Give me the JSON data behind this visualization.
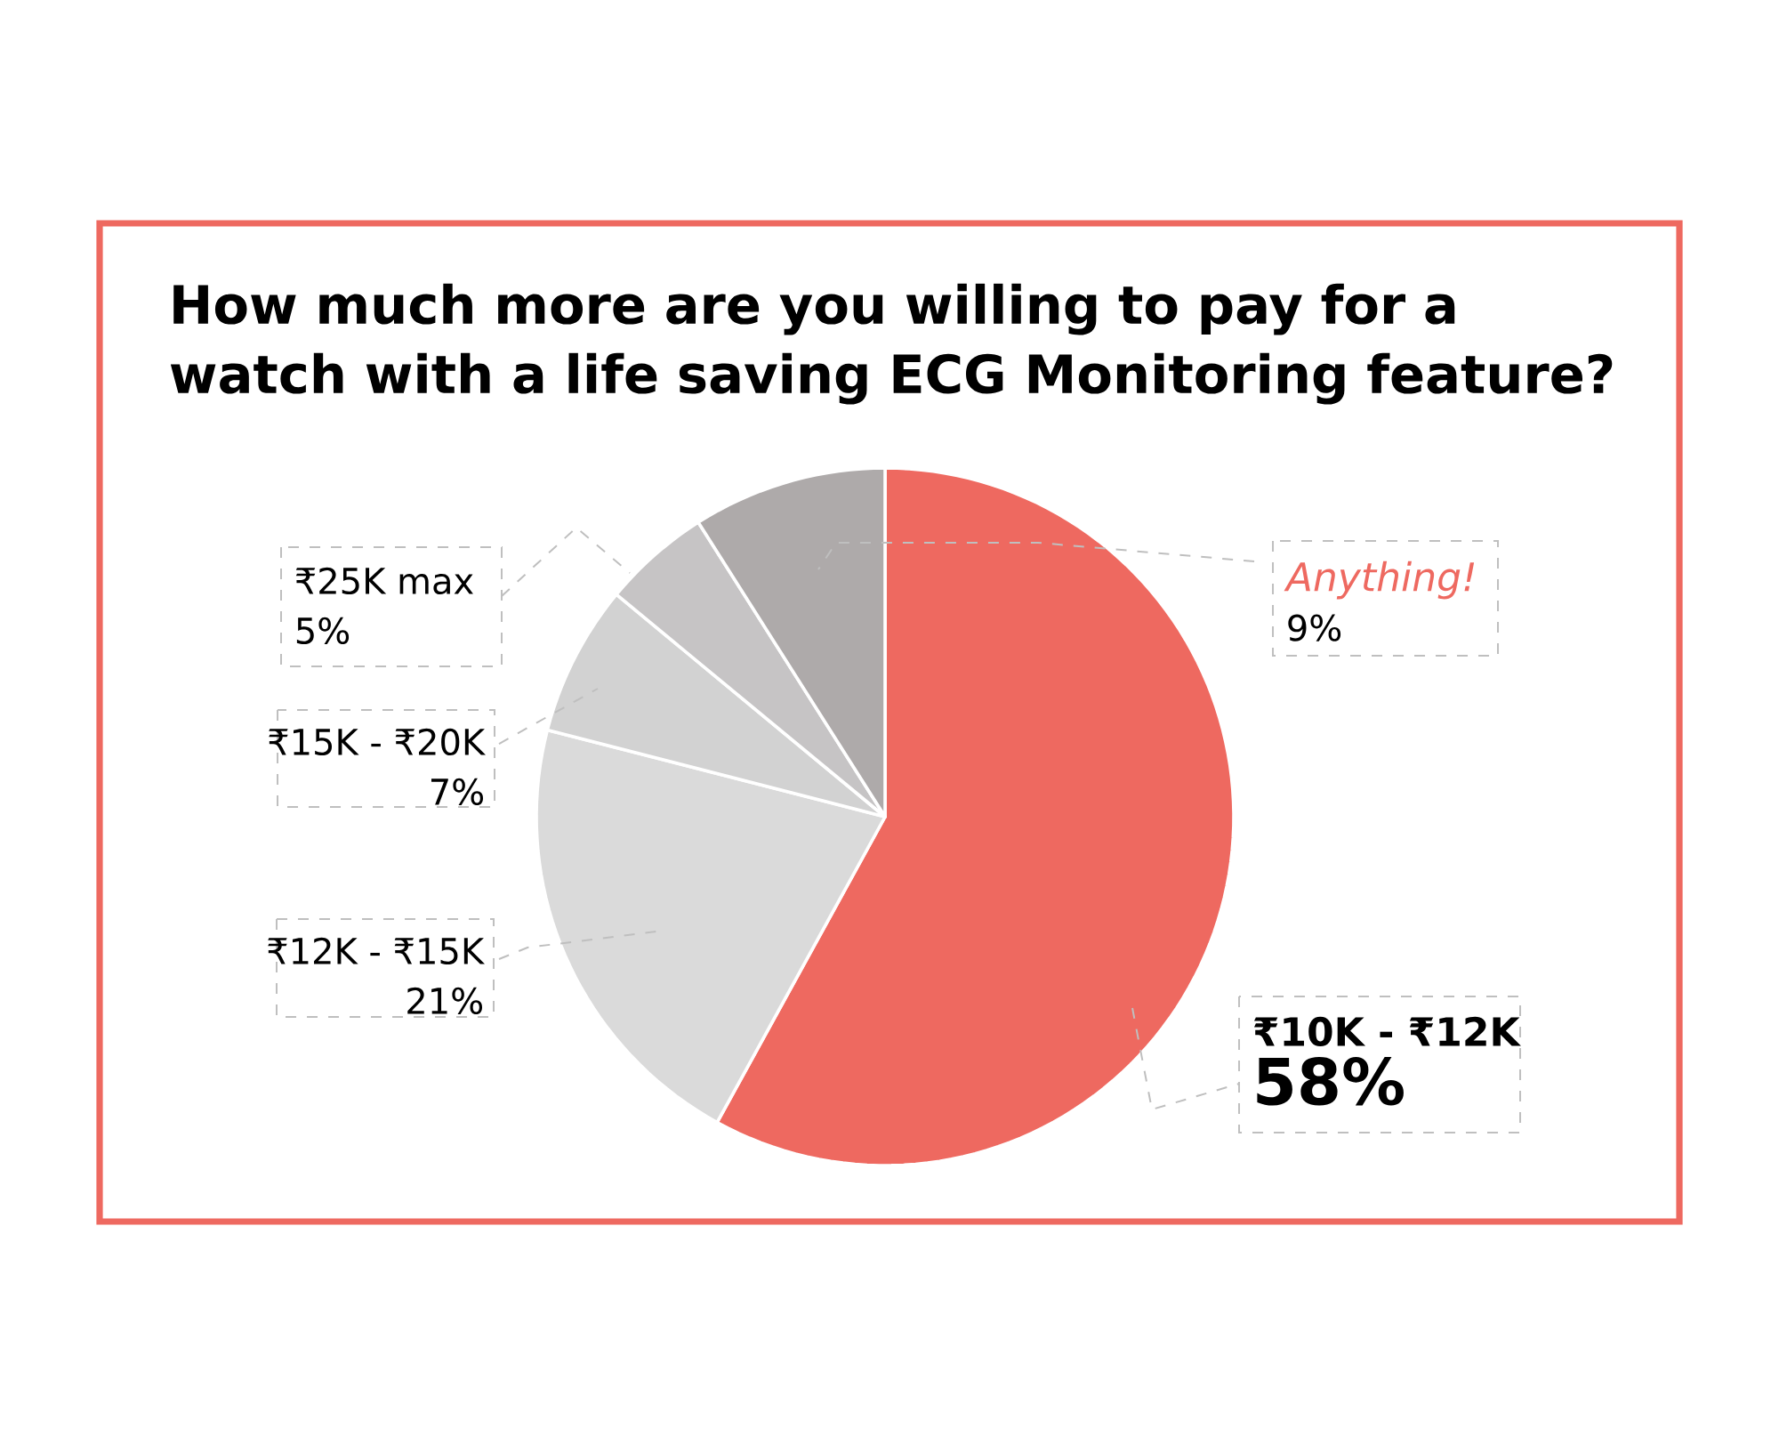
{
  "chart_data": {
    "type": "pie",
    "title": "How much more are you willing to pay for a watch with a life saving ECG Monitoring feature?",
    "categories": [
      "₹10K - ₹12K",
      "₹12K - ₹15K",
      "₹15K - ₹20K",
      "₹25K max",
      "Anything!"
    ],
    "values": [
      58,
      21,
      7,
      5,
      9
    ],
    "colors": [
      "#ee6960",
      "#dadada",
      "#d2d2d2",
      "#c6c4c5",
      "#aeaaaa"
    ],
    "value_labels": [
      "58%",
      "21%",
      "7%",
      "5%",
      "9%"
    ]
  }
}
